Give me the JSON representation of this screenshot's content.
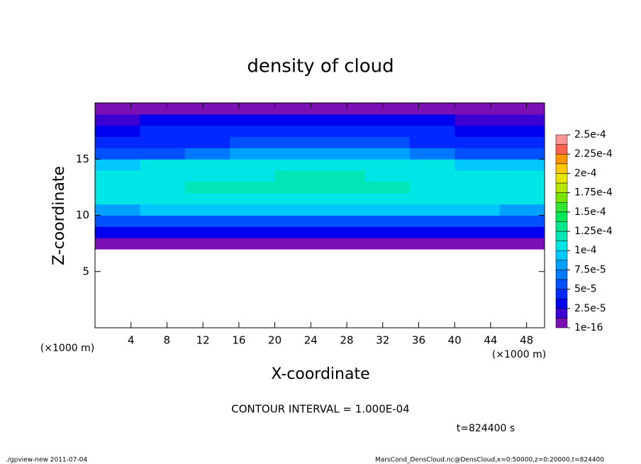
{
  "chart_data": {
    "type": "heatmap",
    "title": "density of cloud",
    "x_label": "X-coordinate",
    "y_label": "Z-coordinate",
    "x_unit_label": "(×1000 m)",
    "y_unit_label": "(×1000 m)",
    "xlim": [
      0,
      50
    ],
    "ylim": [
      0,
      20
    ],
    "xticks": [
      4,
      8,
      12,
      16,
      20,
      24,
      28,
      32,
      36,
      40,
      44,
      48
    ],
    "yticks": [
      5,
      10,
      15
    ],
    "x": [
      2.5,
      7.5,
      12.5,
      17.5,
      22.5,
      27.5,
      32.5,
      37.5,
      42.5,
      47.5
    ],
    "y": [
      0.5,
      1.5,
      2.5,
      3.5,
      4.5,
      5.5,
      6.5,
      7.5,
      8.5,
      9.5,
      10.5,
      11.5,
      12.5,
      13.5,
      14.5,
      15.5,
      16.5,
      17.5,
      18.5,
      19.5
    ],
    "values": [
      [
        null,
        null,
        null,
        null,
        null,
        null,
        null,
        null,
        null,
        null
      ],
      [
        null,
        null,
        null,
        null,
        null,
        null,
        null,
        null,
        null,
        null
      ],
      [
        null,
        null,
        null,
        null,
        null,
        null,
        null,
        null,
        null,
        null
      ],
      [
        null,
        null,
        null,
        null,
        null,
        null,
        null,
        null,
        null,
        null
      ],
      [
        null,
        null,
        null,
        null,
        null,
        null,
        null,
        null,
        null,
        null
      ],
      [
        null,
        null,
        null,
        null,
        null,
        null,
        null,
        null,
        null,
        null
      ],
      [
        null,
        null,
        null,
        null,
        null,
        null,
        null,
        null,
        null,
        null
      ],
      [
        1e-05,
        1e-05,
        1e-05,
        1e-05,
        1e-05,
        1e-05,
        1e-05,
        1e-05,
        1e-05,
        1e-05
      ],
      [
        3e-05,
        3.2e-05,
        3e-05,
        2.8e-05,
        3e-05,
        3.1e-05,
        3e-05,
        2.9e-05,
        3e-05,
        3e-05
      ],
      [
        6e-05,
        6.2e-05,
        6e-05,
        6e-05,
        6.2e-05,
        6e-05,
        6e-05,
        5.8e-05,
        6e-05,
        6e-05
      ],
      [
        8.5e-05,
        9e-05,
        9.2e-05,
        9e-05,
        9.5e-05,
        9.5e-05,
        9.2e-05,
        9e-05,
        8.8e-05,
        8.5e-05
      ],
      [
        0.000102,
        0.000108,
        0.00011,
        0.00011,
        0.000112,
        0.000112,
        0.00011,
        0.000108,
        0.000105,
        0.000102
      ],
      [
        0.000108,
        0.000112,
        0.000115,
        0.000115,
        0.000118,
        0.000118,
        0.000115,
        0.000112,
        0.00011,
        0.000108
      ],
      [
        0.000105,
        0.00011,
        0.000112,
        0.000112,
        0.000115,
        0.000115,
        0.000112,
        0.00011,
        0.000105,
        0.000102
      ],
      [
        9e-05,
        0.000102,
        0.000105,
        0.000105,
        0.000108,
        0.000108,
        0.000105,
        0.000102,
        9.5e-05,
        9e-05
      ],
      [
        5.5e-05,
        6e-05,
        7.5e-05,
        8e-05,
        8.2e-05,
        8.2e-05,
        8e-05,
        7.5e-05,
        6e-05,
        5.5e-05
      ],
      [
        4e-05,
        4.5e-05,
        5e-05,
        5.5e-05,
        5.8e-05,
        5.8e-05,
        5.5e-05,
        5e-05,
        4.5e-05,
        4e-05
      ],
      [
        3.5e-05,
        3.8e-05,
        4e-05,
        4e-05,
        4.2e-05,
        4.2e-05,
        4e-05,
        3.8e-05,
        3.5e-05,
        3.5e-05
      ],
      [
        2.5e-05,
        2.8e-05,
        3e-05,
        3e-05,
        3e-05,
        3e-05,
        3e-05,
        2.8e-05,
        2.5e-05,
        2.5e-05
      ],
      [
        1e-05,
        1e-05,
        1e-05,
        1e-05,
        1e-05,
        1e-05,
        1e-05,
        1e-05,
        1e-05,
        1e-05
      ]
    ],
    "colorbar": {
      "levels": [
        {
          "value": 1e-16,
          "label": "1e-16"
        },
        {
          "value": 2.5e-05,
          "label": "2.5e-5"
        },
        {
          "value": 5e-05,
          "label": "5e-5"
        },
        {
          "value": 7.5e-05,
          "label": "7.5e-5"
        },
        {
          "value": 0.0001,
          "label": "1e-4"
        },
        {
          "value": 0.000125,
          "label": "1.25e-4"
        },
        {
          "value": 0.00015,
          "label": "1.5e-4"
        },
        {
          "value": 0.000175,
          "label": "1.75e-4"
        },
        {
          "value": 0.0002,
          "label": "2e-4"
        },
        {
          "value": 0.000225,
          "label": "2.25e-4"
        },
        {
          "value": 0.00025,
          "label": "2.5e-4"
        }
      ],
      "colors": [
        "#7a10b4",
        "#3c00d2",
        "#0000f0",
        "#0028ff",
        "#0050ff",
        "#0078ff",
        "#00a0ff",
        "#00c8ff",
        "#00e6e6",
        "#00e6b4",
        "#00e68c",
        "#00e65a",
        "#32e632",
        "#78e600",
        "#b4e600",
        "#e6e600",
        "#ffc800",
        "#ff9600",
        "#ff6450",
        "#ff9696"
      ]
    },
    "contour_interval": "CONTOUR INTERVAL = 1.000E-04",
    "time_label": "t=824400 s",
    "footer_left": "./gpview-new   2011-07-04",
    "footer_right": "MarsCond_DensCloud.nc@DensCloud,x=0:50000,z=0:20000,t=824400"
  }
}
